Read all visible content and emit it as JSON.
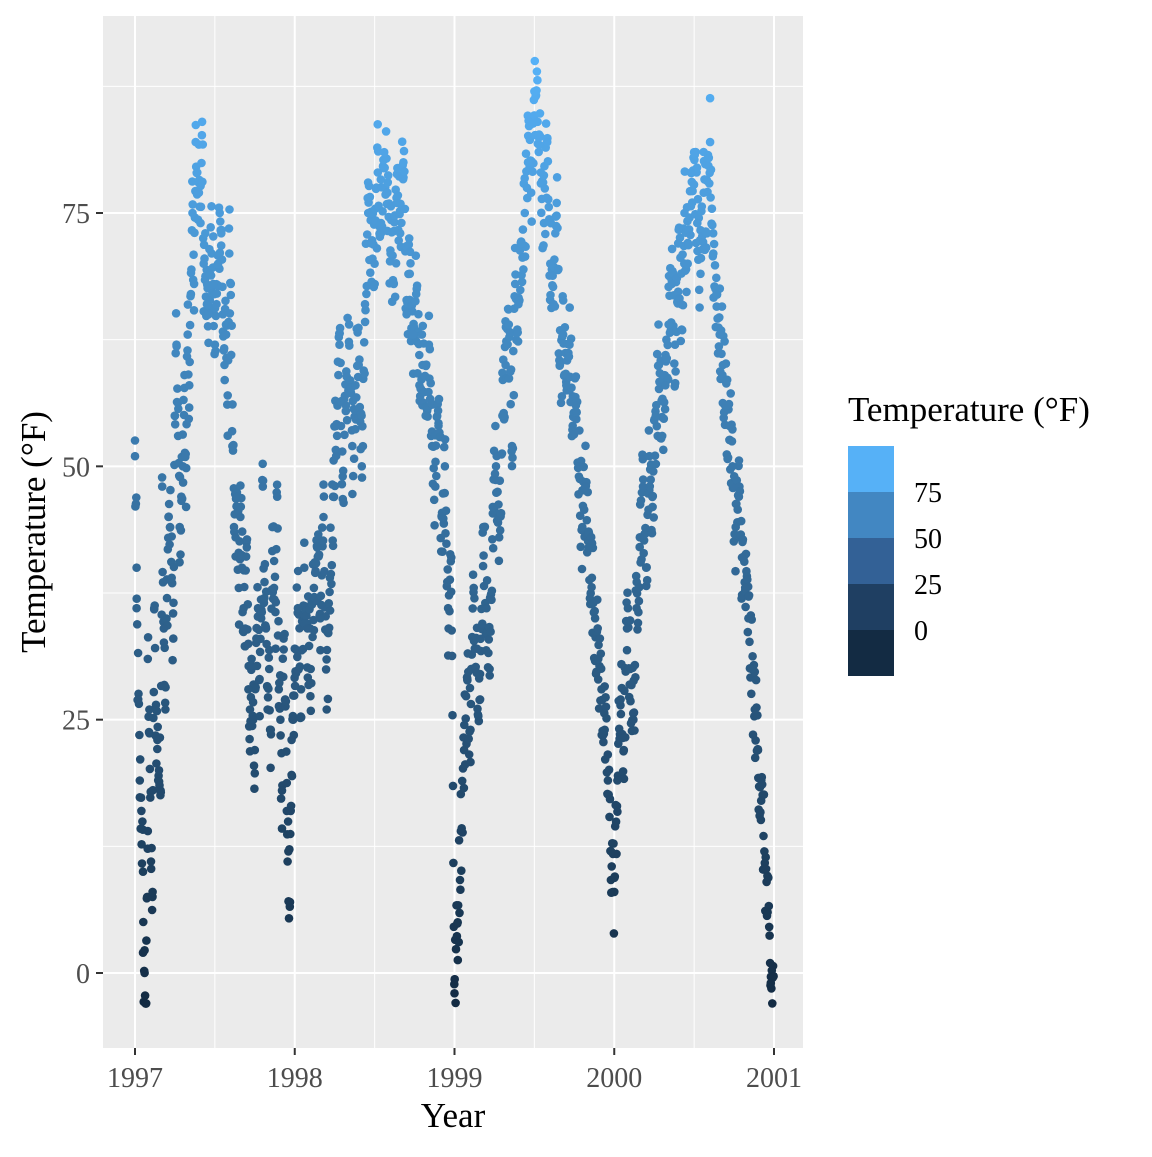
{
  "chart_data": {
    "type": "scatter",
    "title": "",
    "xlabel": "Year",
    "ylabel": "Temperature (°F)",
    "xlim": [
      1996.85,
      2001.25
    ],
    "ylim": [
      -7,
      92
    ],
    "x_ticks": [
      1997,
      1998,
      1999,
      2000,
      2001
    ],
    "x_tick_labels": [
      "1997",
      "1998",
      "1999",
      "2000",
      "2001"
    ],
    "y_ticks": [
      0,
      25,
      50,
      75
    ],
    "y_tick_labels": [
      "0",
      "25",
      "50",
      "75"
    ],
    "grid": true,
    "panel_background": "#EBEBEB",
    "legend": {
      "title": "Temperature (°F)",
      "position": "right",
      "type": "binned colorbar",
      "labels": [
        "75",
        "50",
        "25",
        "0"
      ],
      "bins": [
        "#56B1F7",
        "#4287C2",
        "#336196",
        "#1F3F62",
        "#132B43"
      ]
    },
    "color_scale": {
      "low": "#132B43",
      "high": "#56B1F7",
      "domain": [
        -3,
        90
      ]
    },
    "point_count": 1461,
    "series": [
      {
        "x": [
          1997.0,
          1997.01,
          1997.01,
          1997.02,
          1997.03,
          1997.04,
          1997.05,
          1997.05,
          1997.06,
          1997.07,
          1997.08,
          1997.08,
          1997.09,
          1997.1,
          1997.11,
          1997.12,
          1997.13,
          1997.14,
          1997.15,
          1997.16,
          1997.17,
          1997.18,
          1997.19,
          1997.2,
          1997.21,
          1997.22,
          1997.23,
          1997.24,
          1997.25,
          1997.26,
          1997.27,
          1997.28,
          1997.29,
          1997.3,
          1997.31,
          1997.32,
          1997.33,
          1997.34,
          1997.35,
          1997.36,
          1997.37,
          1997.38,
          1997.39,
          1997.4,
          1997.41,
          1997.42,
          1997.43,
          1997.44,
          1997.45,
          1997.46,
          1997.47,
          1997.48,
          1997.49,
          1997.5,
          1997.51,
          1997.52,
          1997.53,
          1997.54,
          1997.55,
          1997.56,
          1997.57,
          1997.58,
          1997.59,
          1997.6,
          1997.61,
          1997.62,
          1997.63,
          1997.64,
          1997.65,
          1997.66,
          1997.67,
          1997.68,
          1997.69,
          1997.7,
          1997.71,
          1997.72,
          1997.73,
          1997.74,
          1997.75,
          1997.76,
          1997.77,
          1997.78,
          1997.79,
          1997.8,
          1997.81,
          1997.82,
          1997.83,
          1997.84,
          1997.85,
          1997.86,
          1997.87,
          1997.88,
          1997.89,
          1997.9,
          1997.91,
          1997.92,
          1997.93,
          1997.94,
          1997.95,
          1997.96,
          1997.97,
          1997.98,
          1997.99
        ],
        "y": [
          51,
          40,
          36,
          27,
          19,
          16,
          10,
          2,
          0,
          -3,
          14,
          31,
          26,
          11,
          8,
          36,
          26,
          23,
          20,
          18,
          48,
          34,
          26,
          37,
          45,
          44,
          39,
          33,
          55,
          62,
          53,
          44,
          47,
          50,
          59,
          46,
          63,
          58,
          67,
          75,
          68,
          82,
          79,
          77,
          74,
          84,
          70,
          73,
          66,
          65,
          69,
          71,
          68,
          62,
          66,
          70,
          75,
          73,
          65,
          60,
          63,
          57,
          71,
          68,
          52,
          44,
          43,
          47,
          38,
          45,
          40,
          36,
          34,
          42,
          28,
          26,
          31,
          25,
          22,
          33,
          36,
          29,
          35,
          48,
          37,
          34,
          26,
          30,
          24,
          44,
          38,
          32,
          47,
          28,
          25,
          18,
          33,
          27,
          16,
          12,
          7,
          23,
          25
        ]
      },
      {
        "x": [
          1998.0,
          1998.02,
          1998.04,
          1998.06,
          1998.08,
          1998.1,
          1998.12,
          1998.14,
          1998.16,
          1998.18,
          1998.2,
          1998.22,
          1998.24,
          1998.26,
          1998.28,
          1998.3,
          1998.32,
          1998.34,
          1998.36,
          1998.38,
          1998.4,
          1998.42,
          1998.44,
          1998.46,
          1998.48,
          1998.5,
          1998.52,
          1998.54,
          1998.56,
          1998.58,
          1998.6,
          1998.62,
          1998.64,
          1998.66,
          1998.68,
          1998.7,
          1998.72,
          1998.74,
          1998.76,
          1998.78,
          1998.8,
          1998.82,
          1998.84,
          1998.86,
          1998.88,
          1998.9,
          1998.92,
          1998.94,
          1998.96,
          1998.98
        ],
        "y": [
          32,
          36,
          28,
          40,
          34,
          30,
          38,
          42,
          35,
          45,
          26,
          39,
          47,
          54,
          62,
          49,
          56,
          64,
          52,
          58,
          60,
          50,
          66,
          75,
          72,
          70,
          79,
          74,
          81,
          77,
          71,
          68,
          76,
          73,
          80,
          65,
          69,
          63,
          67,
          58,
          60,
          55,
          62,
          52,
          48,
          54,
          45,
          50,
          36,
          41
        ]
      },
      {
        "x": [
          1999.0,
          1999.02,
          1999.04,
          1999.06,
          1999.08,
          1999.1,
          1999.12,
          1999.14,
          1999.16,
          1999.18,
          1999.2,
          1999.22,
          1999.24,
          1999.26,
          1999.28,
          1999.3,
          1999.32,
          1999.34,
          1999.36,
          1999.38,
          1999.4,
          1999.42,
          1999.44,
          1999.46,
          1999.48,
          1999.5,
          1999.52,
          1999.54,
          1999.56,
          1999.58,
          1999.6,
          1999.62,
          1999.64,
          1999.66,
          1999.68,
          1999.7,
          1999.72,
          1999.74,
          1999.76,
          1999.78,
          1999.8,
          1999.82,
          1999.84,
          1999.86,
          1999.88,
          1999.9,
          1999.92,
          1999.94,
          1999.96,
          1999.98
        ],
        "y": [
          -2,
          5,
          14,
          22,
          29,
          24,
          38,
          32,
          27,
          44,
          36,
          30,
          46,
          50,
          43,
          55,
          60,
          64,
          52,
          68,
          66,
          72,
          75,
          80,
          77,
          87,
          84,
          79,
          74,
          82,
          70,
          66,
          76,
          60,
          63,
          58,
          62,
          54,
          56,
          50,
          44,
          48,
          42,
          39,
          35,
          31,
          28,
          24,
          19,
          12
        ]
      },
      {
        "x": [
          2000.0,
          2000.02,
          2000.04,
          2000.06,
          2000.08,
          2000.1,
          2000.12,
          2000.14,
          2000.16,
          2000.18,
          2000.2,
          2000.22,
          2000.24,
          2000.26,
          2000.28,
          2000.3,
          2000.32,
          2000.34,
          2000.36,
          2000.38,
          2000.4,
          2000.42,
          2000.44,
          2000.46,
          2000.48,
          2000.5,
          2000.52,
          2000.54,
          2000.56,
          2000.58,
          2000.6,
          2000.62,
          2000.64,
          2000.66,
          2000.68,
          2000.7,
          2000.72,
          2000.74,
          2000.76,
          2000.78,
          2000.8,
          2000.82,
          2000.84,
          2000.86,
          2000.88,
          2000.9,
          2000.92,
          2000.94,
          2000.96,
          2000.98
        ],
        "y": [
          8,
          19,
          27,
          22,
          34,
          30,
          25,
          36,
          43,
          48,
          40,
          51,
          46,
          55,
          60,
          53,
          58,
          64,
          68,
          62,
          72,
          66,
          75,
          70,
          79,
          81,
          74,
          69,
          77,
          73,
          82,
          71,
          67,
          63,
          60,
          56,
          54,
          50,
          44,
          47,
          41,
          38,
          35,
          30,
          26,
          22,
          17,
          12,
          6,
          -1
        ]
      }
    ]
  }
}
